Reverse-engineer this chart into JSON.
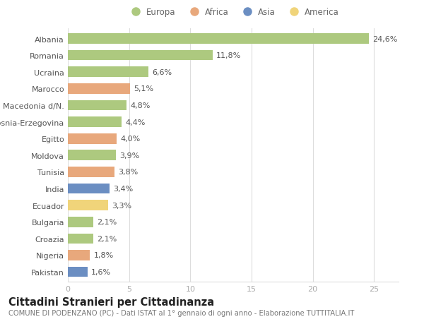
{
  "countries": [
    "Albania",
    "Romania",
    "Ucraina",
    "Marocco",
    "Macedonia d/N.",
    "Bosnia-Erzegovina",
    "Egitto",
    "Moldova",
    "Tunisia",
    "India",
    "Ecuador",
    "Bulgaria",
    "Croazia",
    "Nigeria",
    "Pakistan"
  ],
  "values": [
    24.6,
    11.8,
    6.6,
    5.1,
    4.8,
    4.4,
    4.0,
    3.9,
    3.8,
    3.4,
    3.3,
    2.1,
    2.1,
    1.8,
    1.6
  ],
  "continents": [
    "Europa",
    "Europa",
    "Europa",
    "Africa",
    "Europa",
    "Europa",
    "Africa",
    "Europa",
    "Africa",
    "Asia",
    "America",
    "Europa",
    "Europa",
    "Africa",
    "Asia"
  ],
  "colors": {
    "Europa": "#adc97f",
    "Africa": "#e8a87c",
    "Asia": "#6b8ec2",
    "America": "#f0d47a"
  },
  "legend_order": [
    "Europa",
    "Africa",
    "Asia",
    "America"
  ],
  "title": "Cittadini Stranieri per Cittadinanza",
  "subtitle": "COMUNE DI PODENZANO (PC) - Dati ISTAT al 1° gennaio di ogni anno - Elaborazione TUTTITALIA.IT",
  "xlim": [
    0,
    27
  ],
  "xticks": [
    0,
    5,
    10,
    15,
    20,
    25
  ],
  "background_color": "#ffffff",
  "bar_height": 0.62,
  "grid_color": "#dddddd",
  "label_fontsize": 8.0,
  "tick_fontsize": 8.0,
  "value_fontsize": 8.0,
  "title_fontsize": 10.5,
  "subtitle_fontsize": 7.2
}
